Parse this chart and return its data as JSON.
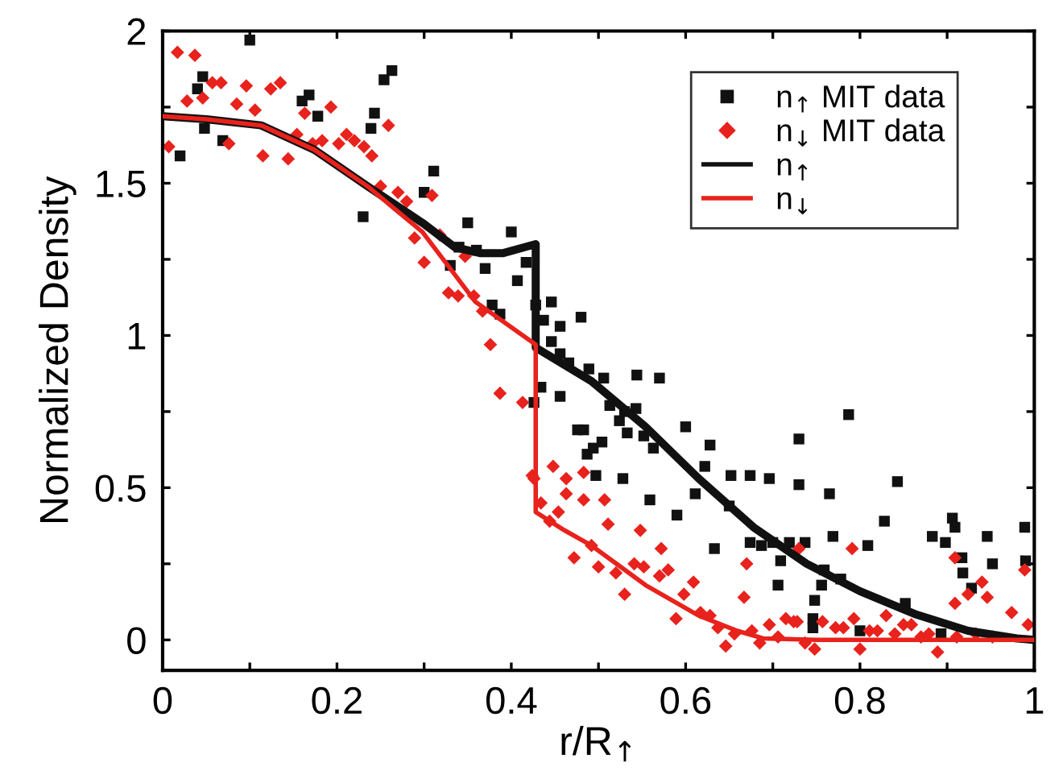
{
  "chart_data": {
    "type": "scatter",
    "xlabel": "r/R$_{↑}$",
    "ylabel": "Normalized Density",
    "xlim": [
      0,
      1
    ],
    "ylim": [
      -0.1,
      2
    ],
    "xticks": [
      0,
      {
        "value": 0.1,
        "label": null
      },
      0.2,
      {
        "value": 0.3,
        "label": null
      },
      0.4,
      {
        "value": 0.5,
        "label": null
      },
      0.6,
      {
        "value": 0.7,
        "label": null
      },
      0.8,
      {
        "value": 0.9,
        "label": null
      },
      1
    ],
    "yticks": [
      0,
      {
        "value": 0.25,
        "label": null
      },
      0.5,
      {
        "value": 0.75,
        "label": null
      },
      1,
      {
        "value": 1.25,
        "label": null
      },
      1.5,
      {
        "value": 1.75,
        "label": null
      },
      2
    ],
    "grid": false,
    "legend": "top right",
    "series": [
      {
        "name": "n$_{↑}$ MIT data",
        "marker": "square",
        "color": "#111111",
        "x": [
          0.02,
          0.04,
          0.046,
          0.048,
          0.069,
          0.1,
          0.16,
          0.168,
          0.178,
          0.23,
          0.239,
          0.243,
          0.254,
          0.263,
          0.3,
          0.311,
          0.33,
          0.34,
          0.35,
          0.36,
          0.37,
          0.378,
          0.387,
          0.4,
          0.407,
          0.417,
          0.426,
          0.428,
          0.434,
          0.437,
          0.446,
          0.446,
          0.456,
          0.456,
          0.456,
          0.466,
          0.476,
          0.48,
          0.483,
          0.487,
          0.489,
          0.494,
          0.497,
          0.504,
          0.506,
          0.513,
          0.524,
          0.528,
          0.53,
          0.533,
          0.543,
          0.544,
          0.552,
          0.559,
          0.563,
          0.57,
          0.59,
          0.6,
          0.611,
          0.622,
          0.628,
          0.633,
          0.65,
          0.652,
          0.674,
          0.674,
          0.687,
          0.696,
          0.7,
          0.706,
          0.709,
          0.719,
          0.73,
          0.73,
          0.737,
          0.746,
          0.746,
          0.748,
          0.756,
          0.759,
          0.765,
          0.769,
          0.778,
          0.787,
          0.8,
          0.809,
          0.828,
          0.843,
          0.852,
          0.883,
          0.893,
          0.898,
          0.906,
          0.909,
          0.917,
          0.918,
          0.928,
          0.946,
          0.952,
          0.989,
          0.99
        ],
        "values": [
          1.59,
          1.81,
          1.85,
          1.68,
          1.64,
          1.97,
          1.77,
          1.79,
          1.72,
          1.39,
          1.68,
          1.73,
          1.84,
          1.87,
          1.47,
          1.54,
          1.23,
          1.29,
          1.37,
          1.28,
          1.22,
          1.1,
          1.07,
          1.34,
          1.18,
          1.24,
          0.78,
          1.1,
          0.83,
          1.05,
          1.11,
          0.98,
          1.03,
          0.94,
          0.8,
          0.91,
          0.69,
          1.06,
          0.69,
          0.61,
          0.89,
          0.63,
          0.54,
          0.65,
          0.86,
          0.77,
          0.72,
          0.53,
          0.75,
          0.68,
          0.76,
          0.87,
          0.67,
          0.46,
          0.63,
          0.86,
          0.41,
          0.7,
          0.48,
          0.57,
          0.64,
          0.3,
          0.44,
          0.54,
          0.54,
          0.32,
          0.31,
          0.53,
          0.32,
          0.18,
          0.26,
          0.32,
          0.66,
          0.51,
          0.32,
          0.07,
          0.04,
          0.13,
          0.18,
          0.23,
          0.48,
          0.34,
          0.2,
          0.74,
          0.03,
          0.31,
          0.39,
          0.52,
          0.12,
          0.34,
          0.02,
          0.32,
          0.4,
          0.37,
          0.27,
          0.22,
          0.17,
          0.34,
          0.25,
          0.37,
          0.26
        ]
      },
      {
        "name": "n$_{↓}$ MIT data",
        "marker": "diamond",
        "color": "#e8221c",
        "x": [
          0.007,
          0.017,
          0.028,
          0.037,
          0.046,
          0.057,
          0.067,
          0.076,
          0.085,
          0.096,
          0.106,
          0.115,
          0.124,
          0.135,
          0.144,
          0.154,
          0.163,
          0.172,
          0.183,
          0.193,
          0.202,
          0.211,
          0.22,
          0.231,
          0.24,
          0.25,
          0.259,
          0.27,
          0.28,
          0.289,
          0.3,
          0.309,
          0.318,
          0.328,
          0.339,
          0.347,
          0.357,
          0.367,
          0.376,
          0.387,
          0.413,
          0.424,
          0.426,
          0.434,
          0.444,
          0.448,
          0.454,
          0.463,
          0.463,
          0.472,
          0.483,
          0.483,
          0.492,
          0.5,
          0.507,
          0.511,
          0.52,
          0.53,
          0.541,
          0.548,
          0.552,
          0.57,
          0.572,
          0.58,
          0.589,
          0.598,
          0.609,
          0.617,
          0.628,
          0.637,
          0.646,
          0.656,
          0.667,
          0.67,
          0.676,
          0.685,
          0.696,
          0.706,
          0.715,
          0.724,
          0.728,
          0.73,
          0.737,
          0.748,
          0.757,
          0.772,
          0.781,
          0.791,
          0.793,
          0.8,
          0.811,
          0.82,
          0.83,
          0.84,
          0.85,
          0.859,
          0.87,
          0.879,
          0.889,
          0.909,
          0.909,
          0.911,
          0.924,
          0.933,
          0.94,
          0.946,
          0.952,
          0.974,
          0.989,
          0.993
        ],
        "values": [
          1.62,
          1.93,
          1.77,
          1.92,
          1.78,
          1.83,
          1.83,
          1.63,
          1.76,
          1.82,
          1.74,
          1.59,
          1.81,
          1.83,
          1.58,
          1.66,
          1.73,
          1.63,
          1.64,
          1.75,
          1.63,
          1.66,
          1.64,
          1.62,
          1.59,
          1.49,
          1.69,
          1.47,
          1.44,
          1.32,
          1.24,
          1.46,
          1.33,
          1.14,
          1.13,
          1.26,
          1.13,
          1.08,
          0.97,
          0.81,
          0.78,
          0.54,
          0.53,
          0.45,
          0.39,
          0.57,
          0.42,
          0.53,
          0.48,
          0.27,
          0.55,
          0.46,
          0.31,
          0.24,
          0.46,
          0.38,
          0.22,
          0.15,
          0.25,
          0.36,
          0.24,
          0.21,
          0.3,
          0.23,
          0.07,
          0.15,
          0.19,
          0.09,
          0.08,
          0.04,
          -0.02,
          0.02,
          0.14,
          0.25,
          0.03,
          -0.01,
          0.05,
          0.01,
          0.07,
          0.06,
          0.06,
          0.3,
          -0.01,
          -0.03,
          0.06,
          0.04,
          0.04,
          0.3,
          0.07,
          -0.03,
          0.03,
          0.03,
          0.08,
          0.02,
          0.05,
          0.05,
          0.01,
          0.02,
          -0.04,
          0.12,
          0.27,
          0.01,
          0.15,
          0.02,
          0.19,
          0.14,
          0.01,
          0.09,
          0.23,
          0.05
        ]
      },
      {
        "name": "n$_{↑}$",
        "type": "line",
        "color": "#111111",
        "x": [
          0,
          0.05,
          0.113,
          0.174,
          0.235,
          0.298,
          0.335,
          0.365,
          0.39,
          0.428,
          0.428,
          0.492,
          0.554,
          0.615,
          0.678,
          0.739,
          0.8,
          0.863,
          0.924,
          0.98,
          1
        ],
        "values": [
          1.72,
          1.71,
          1.69,
          1.61,
          1.49,
          1.37,
          1.29,
          1.27,
          1.27,
          1.3,
          0.96,
          0.85,
          0.7,
          0.53,
          0.37,
          0.25,
          0.16,
          0.085,
          0.03,
          0.005,
          0
        ]
      },
      {
        "name": "n$_{↓}$",
        "type": "line",
        "color": "#e8221c",
        "x": [
          0,
          0.05,
          0.113,
          0.174,
          0.235,
          0.298,
          0.359,
          0.428,
          0.428,
          0.461,
          0.492,
          0.554,
          0.615,
          0.659,
          0.689,
          0.75,
          1
        ],
        "values": [
          1.72,
          1.71,
          1.69,
          1.61,
          1.49,
          1.34,
          1.11,
          0.97,
          0.42,
          0.36,
          0.31,
          0.18,
          0.08,
          0.03,
          0.005,
          0,
          0
        ]
      }
    ]
  }
}
